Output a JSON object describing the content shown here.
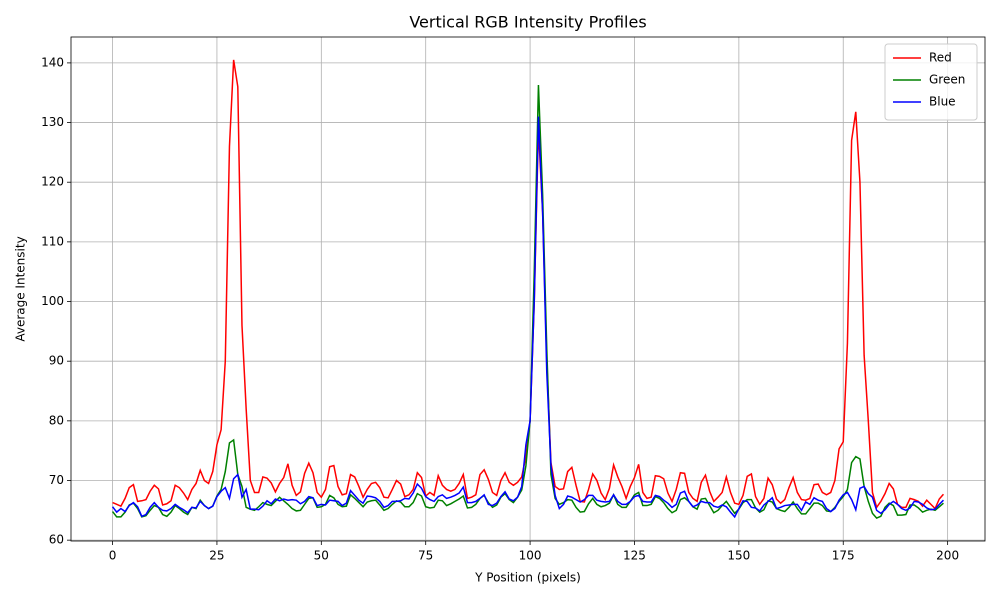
{
  "chart_data": {
    "type": "line",
    "title": "Vertical RGB Intensity Profiles",
    "x_label": "Y Position (pixels)",
    "y_label": "Average Intensity",
    "x": [
      0,
      1,
      2,
      3,
      4,
      5,
      6,
      7,
      8,
      9,
      10,
      11,
      12,
      13,
      14,
      15,
      16,
      17,
      18,
      19,
      20,
      21,
      22,
      23,
      24,
      25,
      26,
      27,
      28,
      29,
      30,
      31,
      32,
      33,
      34,
      35,
      36,
      37,
      38,
      39,
      40,
      41,
      42,
      43,
      44,
      45,
      46,
      47,
      48,
      49,
      50,
      51,
      52,
      53,
      54,
      55,
      56,
      57,
      58,
      59,
      60,
      61,
      62,
      63,
      64,
      65,
      66,
      67,
      68,
      69,
      70,
      71,
      72,
      73,
      74,
      75,
      76,
      77,
      78,
      79,
      80,
      81,
      82,
      83,
      84,
      85,
      86,
      87,
      88,
      89,
      90,
      91,
      92,
      93,
      94,
      95,
      96,
      97,
      98,
      99,
      100,
      101,
      102,
      103,
      104,
      105,
      106,
      107,
      108,
      109,
      110,
      111,
      112,
      113,
      114,
      115,
      116,
      117,
      118,
      119,
      120,
      121,
      122,
      123,
      124,
      125,
      126,
      127,
      128,
      129,
      130,
      131,
      132,
      133,
      134,
      135,
      136,
      137,
      138,
      139,
      140,
      141,
      142,
      143,
      144,
      145,
      146,
      147,
      148,
      149,
      150,
      151,
      152,
      153,
      154,
      155,
      156,
      157,
      158,
      159,
      160,
      161,
      162,
      163,
      164,
      165,
      166,
      167,
      168,
      169,
      170,
      171,
      172,
      173,
      174,
      175,
      176,
      177,
      178,
      179,
      180,
      181,
      182,
      183,
      184,
      185,
      186,
      187,
      188,
      189,
      190,
      191,
      192,
      193,
      194,
      195,
      196,
      197,
      198,
      199
    ],
    "series": [
      {
        "name": "Red",
        "color": "#ff0000",
        "values": [
          66.3,
          66.0,
          65.7,
          67.0,
          68.8,
          69.3,
          66.5,
          66.6,
          66.8,
          68.2,
          69.2,
          68.6,
          65.9,
          66.1,
          66.6,
          69.2,
          68.8,
          67.9,
          66.8,
          68.5,
          69.5,
          71.7,
          70.0,
          69.5,
          71.5,
          76.0,
          78.5,
          90.0,
          126.0,
          140.5,
          136.0,
          96.0,
          82.0,
          70.0,
          68.0,
          68.0,
          70.6,
          70.4,
          69.6,
          68.1,
          69.5,
          70.5,
          72.8,
          69.2,
          67.5,
          68.1,
          71.2,
          72.9,
          71.3,
          68.0,
          67.2,
          68.5,
          72.3,
          72.5,
          69.0,
          67.6,
          67.8,
          71.0,
          70.6,
          69.0,
          67.2,
          68.5,
          69.5,
          69.7,
          68.8,
          67.2,
          67.1,
          68.5,
          70.0,
          69.4,
          67.3,
          67.6,
          68.5,
          71.3,
          70.5,
          67.4,
          68.0,
          67.5,
          70.8,
          69.2,
          68.5,
          68.2,
          68.5,
          69.5,
          71.0,
          67.0,
          67.2,
          67.6,
          71.0,
          71.8,
          70.2,
          68.0,
          67.5,
          70.0,
          71.3,
          69.7,
          69.2,
          69.7,
          70.6,
          74.0,
          80.0,
          100.0,
          129.0,
          115.0,
          90.0,
          73.0,
          69.0,
          68.5,
          68.6,
          71.5,
          72.2,
          69.2,
          66.5,
          66.4,
          68.5,
          71.1,
          70.0,
          67.9,
          66.8,
          68.7,
          72.6,
          70.6,
          69.0,
          67.0,
          69.0,
          70.5,
          72.7,
          68.0,
          67.0,
          67.2,
          70.8,
          70.7,
          70.3,
          67.9,
          66.5,
          68.5,
          71.3,
          71.2,
          68.0,
          67.0,
          66.5,
          69.7,
          70.9,
          68.2,
          66.5,
          67.2,
          68.0,
          70.6,
          68.0,
          66.2,
          66.0,
          67.5,
          70.7,
          71.1,
          67.3,
          66.0,
          67.0,
          70.4,
          69.3,
          66.9,
          66.2,
          66.8,
          68.8,
          70.5,
          68.0,
          66.8,
          66.7,
          67.0,
          69.3,
          69.4,
          68.0,
          67.6,
          68.0,
          70.0,
          75.3,
          76.5,
          93.0,
          127.0,
          131.8,
          120.0,
          91.0,
          80.0,
          68.0,
          65.5,
          66.5,
          67.8,
          69.5,
          68.6,
          66.0,
          65.5,
          65.5,
          67.0,
          66.8,
          66.5,
          65.7,
          66.7,
          66.0,
          65.3,
          66.9,
          67.7
        ]
      },
      {
        "name": "Green",
        "color": "#008000",
        "values": [
          64.8,
          63.9,
          63.9,
          64.7,
          65.9,
          66.2,
          65.3,
          63.9,
          64.1,
          65.0,
          65.8,
          65.5,
          64.3,
          64.0,
          64.7,
          65.8,
          65.3,
          64.7,
          64.3,
          65.5,
          65.3,
          66.7,
          65.8,
          65.3,
          65.7,
          67.4,
          68.5,
          71.5,
          76.3,
          76.8,
          71.0,
          69.0,
          65.5,
          65.2,
          65.0,
          65.6,
          66.3,
          66.0,
          65.8,
          66.5,
          67.2,
          66.6,
          66.0,
          65.3,
          64.9,
          65.0,
          66.0,
          67.0,
          67.1,
          65.5,
          65.6,
          66.0,
          67.5,
          67.1,
          66.0,
          65.6,
          65.7,
          67.6,
          67.0,
          66.3,
          65.6,
          66.4,
          66.6,
          66.7,
          65.9,
          65.0,
          65.3,
          66.0,
          66.6,
          66.4,
          65.6,
          65.6,
          66.3,
          67.8,
          67.4,
          65.6,
          65.4,
          65.5,
          66.7,
          66.6,
          65.8,
          66.1,
          66.5,
          66.9,
          67.4,
          65.4,
          65.5,
          66.0,
          67.0,
          67.5,
          66.3,
          65.5,
          65.9,
          67.2,
          67.8,
          66.8,
          66.3,
          67.2,
          68.4,
          72.5,
          80.0,
          105.0,
          136.3,
          118.0,
          92.0,
          71.0,
          67.0,
          66.0,
          66.3,
          66.8,
          66.7,
          65.5,
          64.7,
          64.8,
          66.1,
          67.0,
          66.0,
          65.6,
          65.8,
          66.2,
          67.6,
          66.0,
          65.5,
          65.5,
          66.5,
          67.6,
          68.0,
          65.8,
          65.8,
          66.0,
          67.3,
          67.0,
          66.3,
          65.3,
          64.6,
          65.0,
          66.8,
          67.1,
          66.5,
          65.6,
          65.2,
          66.9,
          67.0,
          65.8,
          64.6,
          65.0,
          65.8,
          66.5,
          65.5,
          64.5,
          65.2,
          66.3,
          66.8,
          66.8,
          65.4,
          64.7,
          65.1,
          66.6,
          66.4,
          65.3,
          65.0,
          64.8,
          65.5,
          66.4,
          65.3,
          64.4,
          64.4,
          65.3,
          66.2,
          66.2,
          65.8,
          64.9,
          64.8,
          65.5,
          66.5,
          67.3,
          68.5,
          73.0,
          74.0,
          73.6,
          69.0,
          66.5,
          64.5,
          63.7,
          64.0,
          65.5,
          66.2,
          65.8,
          64.2,
          64.2,
          64.3,
          65.9,
          65.9,
          65.4,
          64.7,
          65.0,
          65.2,
          65.0,
          65.6,
          66.2
        ]
      },
      {
        "name": "Blue",
        "color": "#0000ff",
        "values": [
          65.6,
          64.7,
          65.3,
          64.8,
          65.8,
          66.3,
          65.6,
          64.0,
          64.3,
          65.5,
          66.3,
          65.5,
          65.0,
          64.9,
          65.3,
          66.0,
          65.5,
          65.1,
          64.6,
          65.5,
          65.4,
          66.5,
          65.8,
          65.3,
          65.7,
          67.3,
          68.2,
          68.8,
          67.0,
          70.3,
          71.0,
          67.2,
          68.5,
          65.2,
          65.2,
          65.1,
          65.7,
          66.6,
          66.1,
          66.9,
          66.6,
          66.9,
          66.7,
          66.8,
          66.7,
          66.1,
          66.5,
          67.3,
          67.1,
          65.8,
          66.0,
          65.9,
          66.7,
          66.6,
          66.5,
          65.8,
          66.2,
          68.3,
          67.5,
          66.7,
          66.2,
          67.4,
          67.3,
          67.1,
          66.5,
          65.5,
          65.8,
          66.5,
          66.5,
          66.6,
          67.0,
          66.9,
          67.9,
          69.4,
          68.7,
          67.3,
          66.8,
          66.5,
          67.3,
          67.6,
          67.0,
          67.2,
          67.5,
          67.9,
          68.9,
          66.3,
          66.3,
          66.5,
          67.0,
          67.6,
          66.0,
          65.8,
          66.2,
          67.3,
          68.1,
          66.9,
          66.6,
          67.2,
          69.0,
          76.0,
          80.0,
          100.0,
          131.0,
          115.0,
          88.0,
          72.5,
          67.5,
          65.3,
          66.0,
          67.4,
          67.2,
          66.8,
          66.4,
          66.8,
          67.5,
          67.5,
          66.7,
          66.5,
          66.4,
          66.5,
          67.6,
          66.5,
          66.0,
          66.0,
          66.5,
          67.3,
          67.5,
          66.5,
          66.4,
          66.4,
          67.5,
          67.3,
          66.7,
          66.2,
          65.5,
          66.0,
          67.9,
          68.2,
          66.5,
          65.6,
          65.9,
          66.5,
          66.3,
          66.3,
          65.7,
          65.5,
          65.9,
          65.6,
          64.7,
          63.9,
          65.3,
          66.6,
          66.5,
          65.5,
          65.4,
          64.9,
          65.9,
          66.5,
          67.1,
          65.3,
          65.5,
          65.8,
          65.9,
          66.0,
          66.0,
          65.0,
          66.4,
          66.0,
          67.1,
          66.7,
          66.5,
          65.3,
          64.8,
          65.3,
          66.7,
          67.6,
          68.0,
          66.8,
          65.1,
          68.7,
          69.0,
          67.8,
          67.2,
          65.0,
          64.5,
          65.1,
          66.0,
          66.5,
          66.0,
          65.3,
          65.0,
          65.4,
          66.5,
          66.4,
          66.0,
          65.4,
          65.1,
          65.2,
          66.0,
          66.7
        ]
      }
    ],
    "xlim": [
      -9.95,
      208.95
    ],
    "xticks": [
      0,
      25,
      50,
      75,
      100,
      125,
      150,
      175,
      200
    ],
    "ylim": [
      59.86,
      144.34
    ],
    "yticks": [
      60,
      70,
      80,
      90,
      100,
      110,
      120,
      130,
      140
    ],
    "grid": true,
    "legend": "upper-right"
  }
}
